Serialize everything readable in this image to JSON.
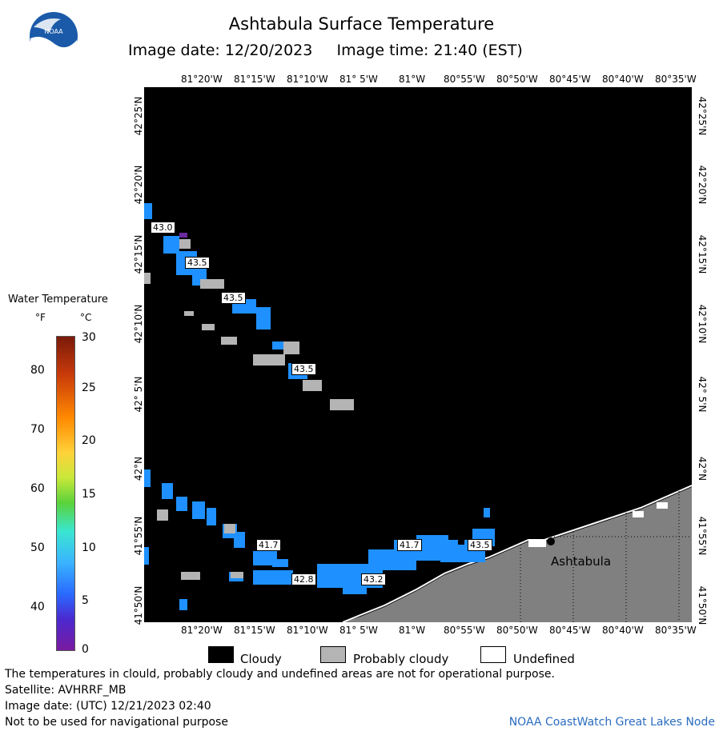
{
  "header": {
    "title": "Ashtabula Surface Temperature",
    "subtitle": "Image date: 12/20/2023     Image time: 21:40 (EST)"
  },
  "logo": {
    "text": "NOAA",
    "icon": "noaa-logo-icon"
  },
  "map": {
    "top_ticks": [
      "81°20'W",
      "81°15'W",
      "81°10'W",
      "81° 5'W",
      "81°W",
      "80°55'W",
      "80°50'W",
      "80°45'W",
      "80°40'W",
      "80°35'W"
    ],
    "bottom_ticks": [
      "81°20'W",
      "81°15'W",
      "81°10'W",
      "81° 5'W",
      "81°W",
      "80°55'W",
      "80°50'W",
      "80°45'W",
      "80°40'W",
      "80°35'W"
    ],
    "left_ticks": [
      "42°25'N",
      "42°20'N",
      "42°15'N",
      "42°10'N",
      "42° 5'N",
      "42°N",
      "41°55'N",
      "41°50'N"
    ],
    "right_ticks": [
      "42°25'N",
      "42°20'N",
      "42°15'N",
      "42°10'N",
      "42° 5'N",
      "42°N",
      "41°55'N",
      "41°50'N"
    ],
    "city_label": "Ashtabula",
    "temp_labels": [
      "43.0",
      "43.5",
      "43.5",
      "43.5",
      "41.7",
      "42.8",
      "43.2",
      "41.7",
      "43.5"
    ],
    "colors": {
      "cloud": "#000000",
      "land": "#808080",
      "probably_cloudy": "#b4b4b4",
      "water": "#1e90ff"
    }
  },
  "legend": {
    "title": "Water Temperature",
    "unit_f": "°F",
    "unit_c": "°C",
    "f_ticks": [
      "80",
      "70",
      "60",
      "50",
      "40"
    ],
    "c_ticks": [
      "30",
      "25",
      "20",
      "15",
      "10",
      "5",
      "0"
    ]
  },
  "key": {
    "cloudy": "Cloudy",
    "probably_cloudy": "Probably cloudy",
    "undefined": "Undefined"
  },
  "footer": {
    "line1": "The temperatures in clould, probably cloudy and undefined areas are not for operational purpose.",
    "line2": "Satellite: AVHRRF_MB",
    "line3": "Image date: (UTC) 12/21/2023  02:40",
    "line4": "Not to be used for navigational purpose",
    "credit": "NOAA CoastWatch Great Lakes Node"
  }
}
